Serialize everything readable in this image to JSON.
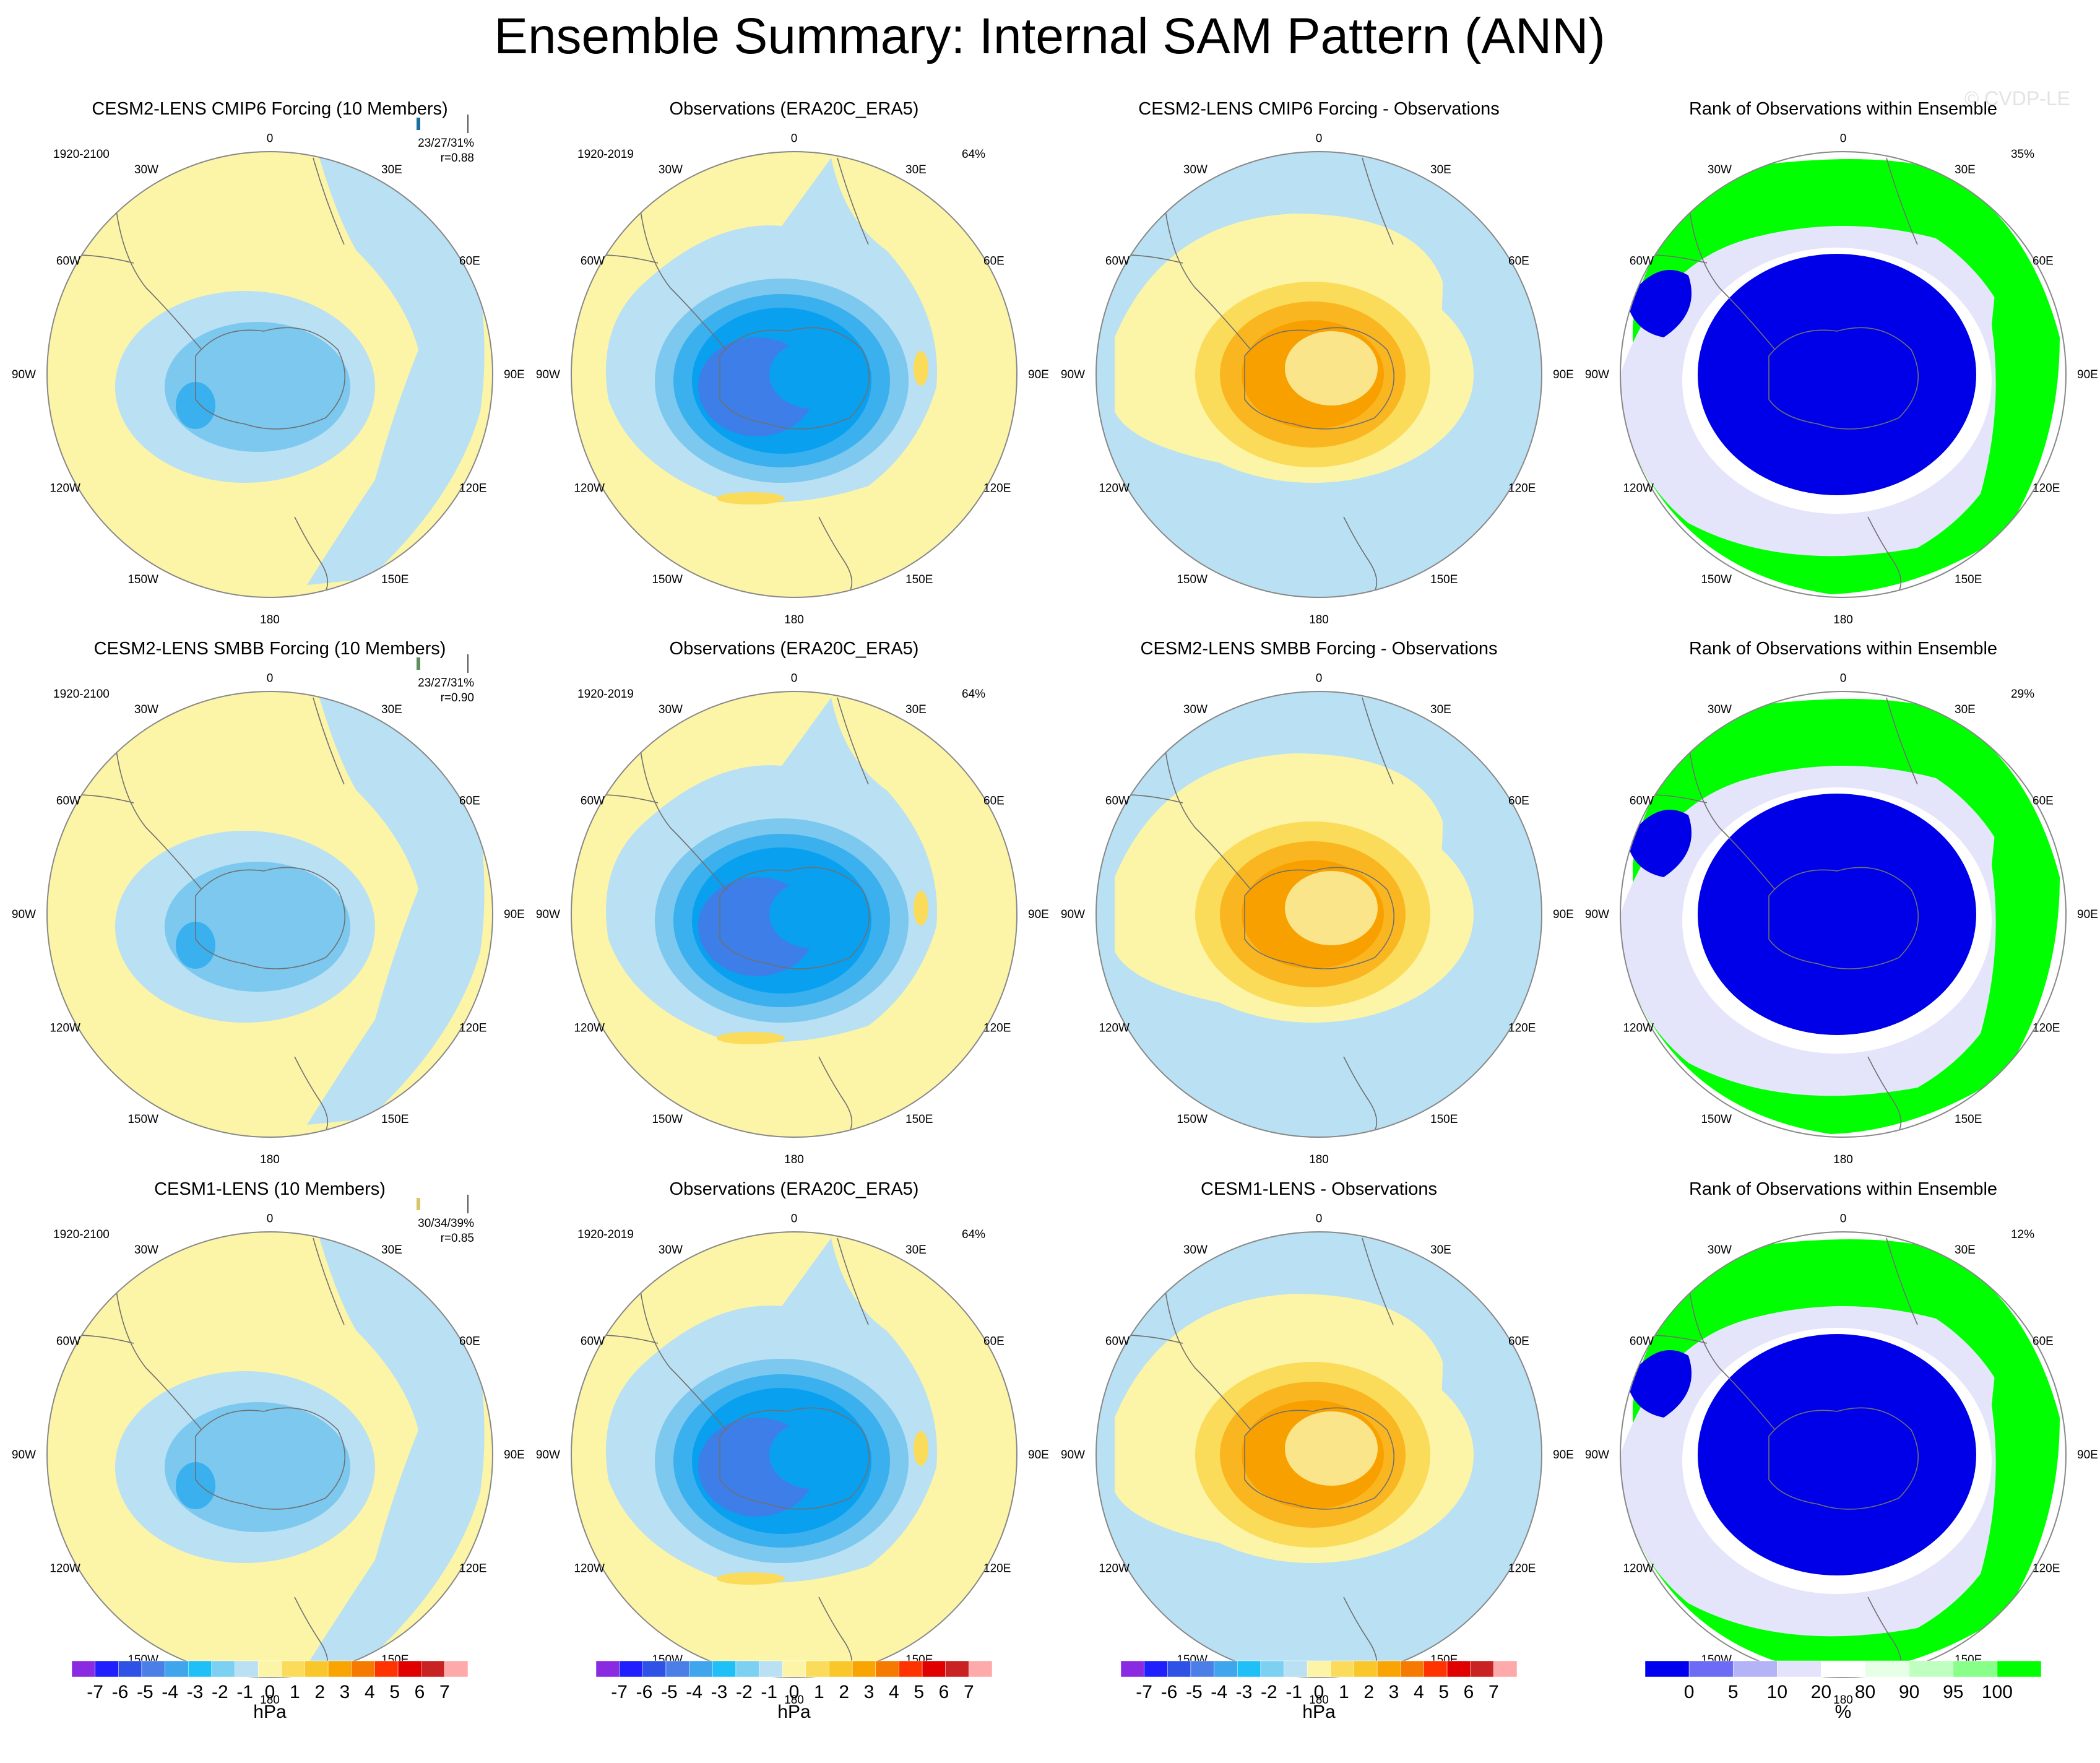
{
  "title": "Ensemble Summary: Internal SAM Pattern (ANN)",
  "watermark": "© CVDP-LE",
  "colors": {
    "ocean_neg1": "#b9e0f3",
    "neg2": "#7cc8ef",
    "neg3": "#3ab0ee",
    "neg4": "#0aa0f0",
    "neg5": "#3d7ee8",
    "neg6": "#305ee0",
    "pos0": "#fcf5a8",
    "pos1": "#fbdc5a",
    "pos2": "#f9b620",
    "pos3": "#f8a000",
    "rank_low": "#0000e8",
    "rank_mid": "#e4e4fb",
    "rank_high": "#00ff00",
    "rank_high2": "#ccffcc",
    "cmip6_title": "#1a6fa0",
    "smbb_title": "#5f8f5f",
    "cesm1_title": "#d6c56a"
  },
  "lon_labels": {
    "top": "0",
    "right_top": "30E",
    "right_upper": "60E",
    "right_mid": "90E",
    "right_lower": "120E",
    "right_bottom": "150E",
    "bottom": "180",
    "left_bottom": "150W",
    "left_lower": "120W",
    "left_mid": "90W",
    "left_upper": "60W",
    "left_top": "30W"
  },
  "rows": [
    {
      "model": {
        "title": "CESM2-LENS CMIP6 Forcing (10 Members)",
        "period": "1920-2100",
        "pct": "23/27/31%",
        "r": "r=0.88"
      },
      "obs": {
        "title": "Observations (ERA20C_ERA5)",
        "period": "1920-2019",
        "pct": "64%"
      },
      "diff": {
        "title": "CESM2-LENS CMIP6 Forcing - Observations"
      },
      "rank": {
        "title": "Rank of Observations within Ensemble",
        "pct": "35%"
      }
    },
    {
      "model": {
        "title": "CESM2-LENS SMBB Forcing (10 Members)",
        "period": "1920-2100",
        "pct": "23/27/31%",
        "r": "r=0.90"
      },
      "obs": {
        "title": "Observations (ERA20C_ERA5)",
        "period": "1920-2019",
        "pct": "64%"
      },
      "diff": {
        "title": "CESM2-LENS SMBB Forcing - Observations"
      },
      "rank": {
        "title": "Rank of Observations within Ensemble",
        "pct": "29%"
      }
    },
    {
      "model": {
        "title": "CESM1-LENS (10 Members)",
        "period": "1920-2100",
        "pct": "30/34/39%",
        "r": "r=0.85"
      },
      "obs": {
        "title": "Observations (ERA20C_ERA5)",
        "period": "1920-2019",
        "pct": "64%"
      },
      "diff": {
        "title": "CESM1-LENS - Observations"
      },
      "rank": {
        "title": "Rank of Observations within Ensemble",
        "pct": "12%"
      }
    }
  ],
  "colorbar_hpa": {
    "ticks": [
      "-7",
      "-6",
      "-5",
      "-4",
      "-3",
      "-2",
      "-1",
      "0",
      "1",
      "2",
      "3",
      "4",
      "5",
      "6",
      "7"
    ],
    "unit": "hPa",
    "colors": [
      "#8a2be2",
      "#2020ff",
      "#2f52e6",
      "#4a7fe8",
      "#3fa6ee",
      "#1fc0f7",
      "#7cd1f2",
      "#b9e0f3",
      "#fcf5a8",
      "#fbdc5a",
      "#f9c72a",
      "#f9a400",
      "#f77a00",
      "#ff3300",
      "#e00000",
      "#c82222",
      "#ffaaaa"
    ]
  },
  "colorbar_rank": {
    "ticks": [
      "0",
      "5",
      "10",
      "20",
      "80",
      "90",
      "95",
      "100"
    ],
    "unit": "%",
    "colors": [
      "#0000ee",
      "#6b6bf5",
      "#b3b3f7",
      "#e3e3fb",
      "#ffffff",
      "#e6ffe6",
      "#bfffbf",
      "#88ff88",
      "#00ff00"
    ]
  }
}
